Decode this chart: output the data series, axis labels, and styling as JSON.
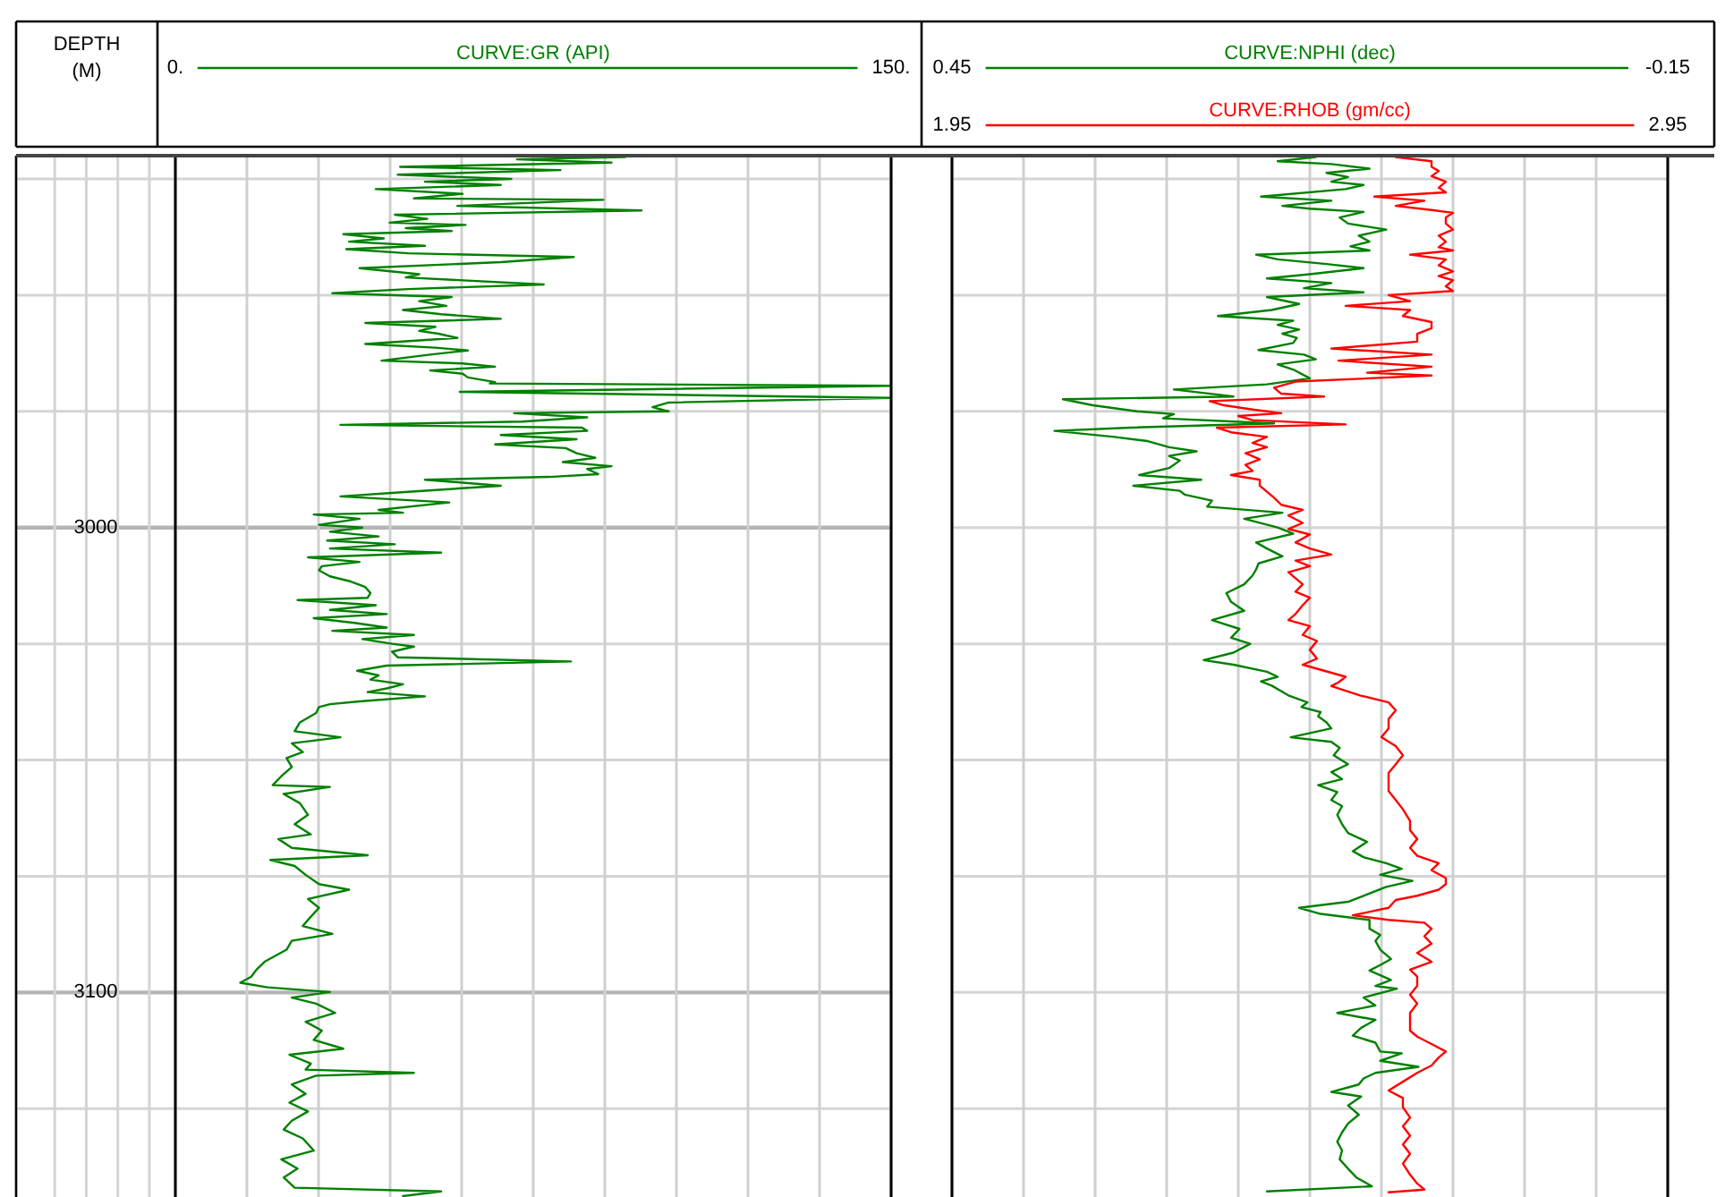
{
  "chart_data": [
    {
      "type": "line",
      "orientation": "horizontal",
      "ylabel": "DEPTH (M)",
      "legend": "top",
      "grid": true,
      "xlim": [
        0,
        150
      ],
      "xticks": [
        {
          "value": 0,
          "label": "0."
        },
        {
          "value": 15,
          "label": null
        },
        {
          "value": 30,
          "label": null
        },
        {
          "value": 45,
          "label": null
        },
        {
          "value": 60,
          "label": null
        },
        {
          "value": 75,
          "label": null
        },
        {
          "value": 90,
          "label": null
        },
        {
          "value": 105,
          "label": null
        },
        {
          "value": 120,
          "label": null
        },
        {
          "value": 135,
          "label": null
        },
        {
          "value": 150,
          "label": "150."
        }
      ],
      "ylim": [
        3144,
        2920
      ],
      "yticks": [
        {
          "value": 2925,
          "label": null
        },
        {
          "value": 2950,
          "label": null
        },
        {
          "value": 2975,
          "label": null
        },
        3000,
        {
          "value": 3025,
          "label": null
        },
        {
          "value": 3050,
          "label": null
        },
        {
          "value": 3075,
          "label": null
        },
        3100,
        {
          "value": 3125,
          "label": null
        }
      ],
      "series": [
        {
          "name": "CURVE:GR (API)",
          "color": "#008000",
          "x": [
            2920.3,
            2920.8,
            2921.5,
            2922.4,
            2923.1,
            2924.1,
            2925.0,
            2925.6,
            2926.3,
            2927.2,
            2928.2,
            2929.2,
            2929.5,
            2930.8,
            2931.8,
            2932.7,
            2933.6,
            2934.4,
            2934.9,
            2935.6,
            2936.2,
            2936.9,
            2937.8,
            2938.5,
            2939.4,
            2940.1,
            2941.0,
            2941.8,
            2942.9,
            2944.2,
            2945.5,
            2946.2,
            2947.7,
            2948.7,
            2949.6,
            2950.4,
            2951.3,
            2952.3,
            2953.2,
            2954.1,
            2955.1,
            2956.0,
            2956.8,
            2957.7,
            2958.3,
            2959.2,
            2960.5,
            2961.3,
            2961.9,
            2962.8,
            2964.1,
            2964.7,
            2965.4,
            2966.2,
            2966.9,
            2967.7,
            2968.7,
            2969.0,
            2969.5,
            2970.8,
            2972.1,
            2973.1,
            2974.1,
            2975.0,
            2975.4,
            2976.3,
            2977.2,
            2977.9,
            2978.5,
            2979.2,
            2980.1,
            2981.0,
            2982.1,
            2982.9,
            2984.0,
            2985.0,
            2985.9,
            2986.8,
            2987.4,
            2988.5,
            2989.1,
            2989.7,
            2991.0,
            2992.3,
            2993.3,
            2994.6,
            2996.2,
            2996.8,
            2997.2,
            2998.1,
            2999.4,
            3000.0,
            3000.9,
            3001.9,
            3002.8,
            3003.6,
            3004.5,
            3005.4,
            3006.4,
            3007.4,
            3008.3,
            3009.2,
            3010.5,
            3011.5,
            3012.8,
            3014.1,
            3015.1,
            3015.6,
            3016.7,
            3017.7,
            3018.6,
            3019.5,
            3020.5,
            3021.5,
            3022.2,
            3023.1,
            3024.0,
            3025.0,
            3025.6,
            3026.7,
            3027.9,
            3028.8,
            3029.7,
            3030.8,
            3031.8,
            3032.7,
            3033.7,
            3034.6,
            3035.4,
            3036.3,
            3037.4,
            3038.0,
            3038.6,
            3039.9,
            3041.9,
            3043.8,
            3045.1,
            3046.4,
            3048.3,
            3049.6,
            3051.5,
            3053.5,
            3055.4,
            3055.8,
            3057.3,
            3059.3,
            3061.8,
            3063.8,
            3066.0,
            3067.0,
            3068.9,
            3070.5,
            3071.5,
            3072.8,
            3074.7,
            3076.7,
            3077.9,
            3079.9,
            3081.8,
            3083.7,
            3085.7,
            3087.4,
            3088.9,
            3090.8,
            3092.1,
            3093.4,
            3095.1,
            3096.6,
            3097.9,
            3098.9,
            3099.9,
            3101.1,
            3102.4,
            3104.4,
            3106.3,
            3108.2,
            3110.2,
            3112.1,
            3113.4,
            3115.3,
            3116.6,
            3117.3,
            3117.9,
            3119.8,
            3121.8,
            3123.7,
            3125.6,
            3127.6,
            3129.5,
            3131.4,
            3134.0,
            3135.9,
            3137.9,
            3139.8,
            3142.0,
            3142.8,
            3143.8
          ],
          "values": [
            94.3,
            71.6,
            91.4,
            47.1,
            80.7,
            46.6,
            70.4,
            52.3,
            68.2,
            42.0,
            60.2,
            50.0,
            89.7,
            59.1,
            97.7,
            46.0,
            52.8,
            44.9,
            60.8,
            48.3,
            57.9,
            35.2,
            43.7,
            36.4,
            52.3,
            35.8,
            48.8,
            83.5,
            68.2,
            38.6,
            51.1,
            48.3,
            77.2,
            48.8,
            32.9,
            57.9,
            51.1,
            56.8,
            47.7,
            55.7,
            68.2,
            39.8,
            54.5,
            51.1,
            55.1,
            59.1,
            39.8,
            54.5,
            61.3,
            53.4,
            43.2,
            60.2,
            67.0,
            53.4,
            60.2,
            61.3,
            67.0,
            65.9,
            150,
            59.6,
            150,
            103.4,
            100.0,
            103.4,
            71.0,
            86.3,
            72.7,
            34.6,
            85.2,
            86.3,
            68.2,
            84.1,
            67.0,
            81.8,
            84.1,
            88.0,
            81.2,
            91.4,
            86.3,
            88.6,
            78.4,
            52.3,
            68.2,
            48.8,
            34.6,
            57.4,
            42.6,
            47.7,
            29.0,
            38.6,
            30.1,
            39.2,
            32.4,
            42.6,
            31.8,
            46.0,
            32.4,
            55.7,
            27.8,
            38.6,
            30.7,
            30.1,
            32.4,
            36.4,
            39.8,
            40.9,
            40.3,
            25.6,
            42.0,
            32.4,
            44.3,
            29.0,
            37.5,
            44.3,
            32.9,
            50.0,
            39.2,
            45.4,
            50.0,
            45.4,
            46.6,
            82.9,
            44.3,
            38.1,
            42.6,
            40.9,
            47.7,
            44.3,
            40.3,
            52.3,
            38.6,
            32.4,
            30.1,
            29.5,
            26.1,
            25.0,
            34.6,
            24.4,
            26.7,
            23.3,
            24.4,
            22.2,
            20.4,
            32.4,
            22.7,
            26.1,
            27.8,
            25.0,
            28.4,
            21.6,
            24.4,
            40.3,
            19.9,
            25.0,
            27.3,
            30.1,
            36.4,
            27.8,
            30.1,
            28.4,
            26.7,
            32.9,
            24.4,
            23.3,
            21.0,
            18.7,
            17.0,
            15.9,
            13.6,
            19.3,
            32.4,
            24.4,
            29.5,
            33.5,
            27.3,
            30.7,
            29.0,
            35.2,
            23.9,
            28.4,
            27.3,
            50.0,
            29.5,
            24.4,
            27.3,
            23.9,
            27.8,
            24.4,
            22.7,
            26.7,
            29.0,
            22.2,
            25.6,
            22.7,
            25.0,
            55.7,
            47.7
          ]
        }
      ]
    },
    {
      "type": "line",
      "orientation": "horizontal",
      "legend": "top",
      "grid": true,
      "tick_labels": "x",
      "xlim": [
        0.45,
        -0.15
      ],
      "xticks": [
        0.45,
        {
          "value": 0.39,
          "label": null
        },
        {
          "value": 0.33,
          "label": null
        },
        {
          "value": 0.27,
          "label": null
        },
        {
          "value": 0.21,
          "label": null
        },
        {
          "value": 0.15,
          "label": null
        },
        {
          "value": 0.09,
          "label": null
        },
        {
          "value": 0.03,
          "label": null
        },
        {
          "value": -0.03,
          "label": null
        },
        {
          "value": -0.09,
          "label": null
        },
        -0.15
      ],
      "x2lim": [
        1.95,
        2.95
      ],
      "x2ticks": [
        1.95,
        2.95
      ],
      "ylim": [
        3144,
        2920
      ],
      "yticks": [
        {
          "value": 2925,
          "label": null
        },
        {
          "value": 2950,
          "label": null
        },
        {
          "value": 2975,
          "label": null
        },
        {
          "value": 3000,
          "label": null
        },
        {
          "value": 3025,
          "label": null
        },
        {
          "value": 3050,
          "label": null
        },
        {
          "value": 3075,
          "label": null
        },
        {
          "value": 3100,
          "label": null
        },
        {
          "value": 3125,
          "label": null
        }
      ],
      "series": [
        {
          "name": "CURVE:NPHI (dec)",
          "color": "#008000",
          "x": [
            2920.3,
            2921.2,
            2921.8,
            2922.8,
            2923.7,
            2924.6,
            2925.6,
            2926.3,
            2927.2,
            2928.8,
            2929.7,
            2930.8,
            2931.4,
            2932.1,
            2933.3,
            2934.6,
            2935.9,
            2937.2,
            2938.5,
            2939.5,
            2940.4,
            2941.3,
            2942.3,
            2943.3,
            2944.2,
            2945.5,
            2946.4,
            2947.4,
            2948.5,
            2949.4,
            2950.4,
            2951.9,
            2953.2,
            2954.5,
            2955.5,
            2956.4,
            2957.4,
            2958.3,
            2959.2,
            2960.3,
            2961.8,
            2962.8,
            2963.8,
            2964.9,
            2966.0,
            2967.9,
            2969.2,
            2970.3,
            2971.8,
            2972.4,
            2973.7,
            2975.0,
            2975.6,
            2976.5,
            2977.6,
            2978.5,
            2979.2,
            2980.5,
            2981.4,
            2982.7,
            2983.6,
            2984.6,
            2985.6,
            2987.2,
            2988.7,
            2989.7,
            2991.0,
            2992.1,
            2992.9,
            2994.2,
            2995.5,
            2996.8,
            2998.1,
            3000.0,
            3001.3,
            3003.2,
            3004.5,
            3006.2,
            3007.7,
            3009.0,
            3010.3,
            3012.2,
            3014.1,
            3016.0,
            3017.9,
            3019.9,
            3021.8,
            3023.7,
            3025.0,
            3026.9,
            3028.5,
            3029.5,
            3031.0,
            3032.1,
            3033.1,
            3034.0,
            3036.1,
            3037.6,
            3038.6,
            3039.7,
            3040.6,
            3041.9,
            3043.2,
            3044.1,
            3045.1,
            3046.1,
            3047.4,
            3049.0,
            3050.9,
            3052.6,
            3054.1,
            3055.4,
            3056.9,
            3058.6,
            3059.9,
            3061.8,
            3063.8,
            3065.7,
            3067.6,
            3069.6,
            3070.9,
            3072.2,
            3073.4,
            3074.7,
            3076.0,
            3077.3,
            3079.2,
            3080.5,
            3081.8,
            3083.1,
            3084.4,
            3086.3,
            3087.6,
            3088.9,
            3090.8,
            3092.8,
            3094.1,
            3095.3,
            3097.3,
            3098.6,
            3099.2,
            3101.1,
            3102.8,
            3104.4,
            3105.9,
            3107.6,
            3109.3,
            3110.8,
            3112.7,
            3113.1,
            3114.7,
            3116.0,
            3117.3,
            3118.5,
            3119.8,
            3121.4,
            3122.4,
            3124.3,
            3126.3,
            3128.2,
            3130.1,
            3132.1,
            3134.0,
            3135.9,
            3137.9,
            3139.8,
            3141.7,
            3142.8
          ],
          "values": [
            0.145,
            0.177,
            0.132,
            0.1,
            0.136,
            0.118,
            0.132,
            0.105,
            0.12,
            0.191,
            0.132,
            0.173,
            0.15,
            0.105,
            0.125,
            0.118,
            0.086,
            0.109,
            0.1,
            0.116,
            0.1,
            0.195,
            0.177,
            0.136,
            0.105,
            0.15,
            0.186,
            0.132,
            0.155,
            0.105,
            0.186,
            0.159,
            0.182,
            0.227,
            0.164,
            0.177,
            0.159,
            0.173,
            0.161,
            0.164,
            0.193,
            0.155,
            0.145,
            0.177,
            0.164,
            0.15,
            0.186,
            0.264,
            0.214,
            0.357,
            0.332,
            0.295,
            0.264,
            0.273,
            0.18,
            0.3,
            0.364,
            0.314,
            0.286,
            0.268,
            0.245,
            0.268,
            0.259,
            0.268,
            0.293,
            0.241,
            0.298,
            0.259,
            0.255,
            0.232,
            0.236,
            0.173,
            0.205,
            0.177,
            0.164,
            0.195,
            0.186,
            0.173,
            0.193,
            0.195,
            0.198,
            0.205,
            0.22,
            0.216,
            0.205,
            0.232,
            0.209,
            0.216,
            0.2,
            0.214,
            0.239,
            0.214,
            0.186,
            0.177,
            0.191,
            0.182,
            0.168,
            0.152,
            0.157,
            0.141,
            0.143,
            0.136,
            0.132,
            0.148,
            0.166,
            0.132,
            0.125,
            0.13,
            0.118,
            0.132,
            0.123,
            0.143,
            0.127,
            0.132,
            0.123,
            0.127,
            0.123,
            0.118,
            0.102,
            0.114,
            0.105,
            0.086,
            0.073,
            0.091,
            0.064,
            0.086,
            0.105,
            0.118,
            0.159,
            0.141,
            0.1,
            0.1,
            0.091,
            0.095,
            0.091,
            0.082,
            0.091,
            0.1,
            0.082,
            0.095,
            0.077,
            0.105,
            0.095,
            0.127,
            0.095,
            0.107,
            0.114,
            0.095,
            0.091,
            0.073,
            0.091,
            0.059,
            0.095,
            0.105,
            0.109,
            0.132,
            0.107,
            0.118,
            0.109,
            0.118,
            0.123,
            0.127,
            0.123,
            0.125,
            0.118,
            0.111,
            0.098,
            0.186
          ]
        },
        {
          "name": "CURVE:RHOB (gm/cc)",
          "color": "#ff0000",
          "axis": "x2",
          "x": [
            2920.3,
            2921.2,
            2922.4,
            2923.3,
            2924.4,
            2925.6,
            2926.9,
            2927.9,
            2928.8,
            2929.7,
            2930.8,
            2931.7,
            2932.3,
            2933.3,
            2934.6,
            2935.9,
            2937.2,
            2938.5,
            2939.7,
            2940.4,
            2941.3,
            2942.3,
            2943.6,
            2944.9,
            2945.9,
            2946.8,
            2948.1,
            2949.1,
            2950.0,
            2951.3,
            2952.3,
            2953.2,
            2954.5,
            2955.8,
            2957.1,
            2958.3,
            2960.0,
            2961.5,
            2962.8,
            2964.1,
            2965.4,
            2966.7,
            2967.3,
            2968.6,
            2969.9,
            2971.2,
            2971.8,
            2972.8,
            2973.7,
            2974.6,
            2975.4,
            2976.0,
            2976.9,
            2977.8,
            2978.5,
            2979.5,
            2980.5,
            2981.8,
            2982.7,
            2984.0,
            2985.3,
            2986.5,
            2987.8,
            2988.7,
            2989.7,
            2991.0,
            2992.3,
            2993.6,
            2995.1,
            2996.2,
            2997.4,
            2999.0,
            3000.3,
            3001.5,
            3003.2,
            3004.5,
            3005.8,
            3007.1,
            3008.3,
            3009.6,
            3010.9,
            3012.2,
            3013.8,
            3015.1,
            3016.7,
            3018.6,
            3019.9,
            3021.2,
            3023.1,
            3024.4,
            3026.3,
            3028.2,
            3029.5,
            3030.8,
            3032.1,
            3033.3,
            3034.1,
            3036.1,
            3037.6,
            3039.3,
            3041.2,
            3043.2,
            3045.1,
            3047.0,
            3049.0,
            3050.9,
            3052.8,
            3054.8,
            3056.7,
            3058.6,
            3060.6,
            3063.1,
            3065.1,
            3067.0,
            3068.9,
            3070.6,
            3072.2,
            3073.7,
            3075.4,
            3076.7,
            3077.9,
            3079.2,
            3080.1,
            3081.8,
            3083.4,
            3084.4,
            3085.0,
            3086.3,
            3087.9,
            3089.5,
            3091.5,
            3093.4,
            3095.1,
            3096.6,
            3098.6,
            3100.5,
            3102.4,
            3104.4,
            3106.3,
            3108.2,
            3109.5,
            3111.1,
            3112.7,
            3114.0,
            3115.7,
            3117.3,
            3119.2,
            3121.1,
            3122.7,
            3124.7,
            3126.9,
            3128.8,
            3130.8,
            3132.7,
            3134.7,
            3136.8,
            3139.2,
            3141.1,
            3142.4,
            3143.0
          ],
          "values": [
            2.57,
            2.62,
            2.62,
            2.63,
            2.62,
            2.64,
            2.63,
            2.64,
            2.54,
            2.61,
            2.57,
            2.62,
            2.65,
            2.64,
            2.64,
            2.65,
            2.63,
            2.64,
            2.63,
            2.65,
            2.59,
            2.64,
            2.63,
            2.65,
            2.63,
            2.65,
            2.64,
            2.65,
            2.56,
            2.59,
            2.5,
            2.59,
            2.58,
            2.62,
            2.62,
            2.6,
            2.6,
            2.48,
            2.62,
            2.49,
            2.62,
            2.53,
            2.62,
            2.43,
            2.4,
            2.41,
            2.47,
            2.31,
            2.33,
            2.37,
            2.41,
            2.35,
            2.37,
            2.5,
            2.32,
            2.34,
            2.39,
            2.37,
            2.39,
            2.36,
            2.38,
            2.36,
            2.37,
            2.34,
            2.38,
            2.38,
            2.39,
            2.4,
            2.41,
            2.44,
            2.42,
            2.44,
            2.42,
            2.45,
            2.43,
            2.45,
            2.48,
            2.43,
            2.45,
            2.42,
            2.43,
            2.44,
            2.43,
            2.45,
            2.44,
            2.43,
            2.42,
            2.45,
            2.44,
            2.46,
            2.45,
            2.46,
            2.44,
            2.47,
            2.5,
            2.49,
            2.48,
            2.52,
            2.56,
            2.57,
            2.56,
            2.56,
            2.55,
            2.57,
            2.58,
            2.57,
            2.56,
            2.56,
            2.56,
            2.57,
            2.58,
            2.59,
            2.59,
            2.6,
            2.59,
            2.6,
            2.63,
            2.62,
            2.64,
            2.64,
            2.63,
            2.6,
            2.57,
            2.56,
            2.51,
            2.56,
            2.61,
            2.62,
            2.61,
            2.62,
            2.6,
            2.62,
            2.59,
            2.6,
            2.6,
            2.59,
            2.6,
            2.59,
            2.59,
            2.59,
            2.6,
            2.62,
            2.64,
            2.63,
            2.62,
            2.6,
            2.58,
            2.56,
            2.58,
            2.58,
            2.59,
            2.58,
            2.59,
            2.58,
            2.59,
            2.58,
            2.59,
            2.6,
            2.61,
            2.56
          ]
        }
      ]
    }
  ]
}
